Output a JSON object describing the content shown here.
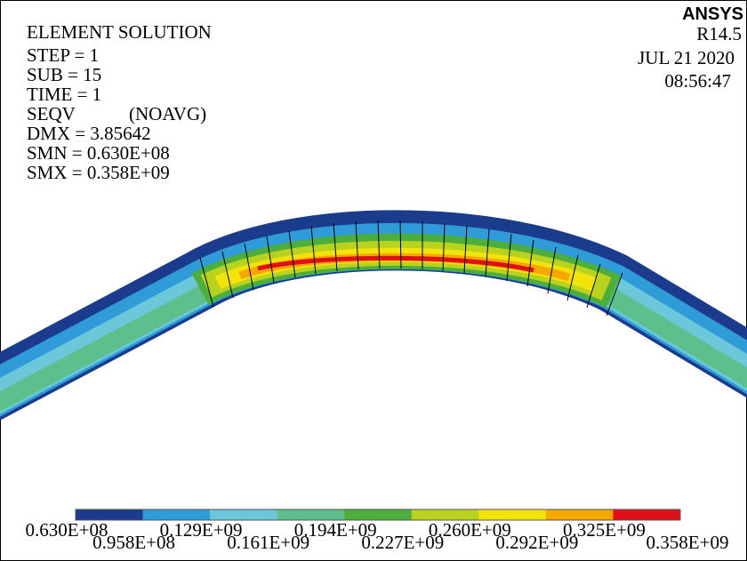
{
  "header": {
    "title": "ELEMENT SOLUTION",
    "lines": [
      "STEP = 1",
      "SUB = 15",
      "TIME = 1",
      "SEQV",
      "(NOAVG)",
      "DMX = 3.85642",
      "SMN = 0.630E+08",
      "SMX = 0.358E+09"
    ]
  },
  "branding": {
    "product": "ANSYS",
    "version": "R14.5",
    "date": "JUL 21 2020",
    "time": "08:56:47"
  },
  "legend": {
    "colors": [
      "#1b3c8c",
      "#2f9bd9",
      "#6cc8d8",
      "#5cbf8c",
      "#4cae3c",
      "#b8d21e",
      "#f2e30a",
      "#f7a800",
      "#e0101a"
    ],
    "labels": [
      "0.630E+08",
      "0.958E+08",
      "0.129E+09",
      "0.161E+09",
      "0.194E+09",
      "0.227E+09",
      "0.260E+09",
      "0.292E+09",
      "0.325E+09",
      "0.358E+09"
    ]
  }
}
